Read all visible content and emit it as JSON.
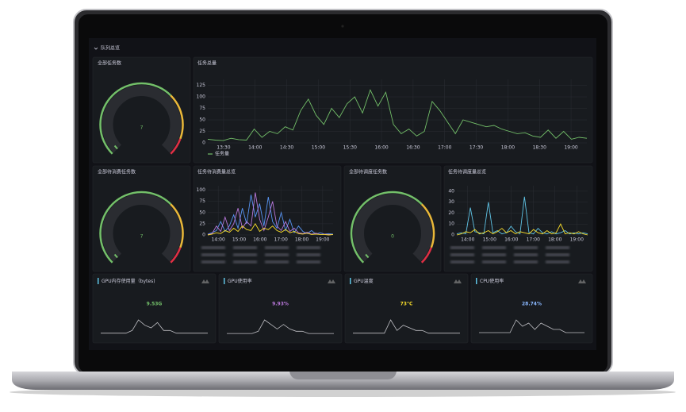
{
  "section_title": "队列总览",
  "gauges": [
    {
      "title": "全部任务数",
      "value": 7
    },
    {
      "title": "全部待消费任务数",
      "value": 7
    },
    {
      "title": "全部待调度任务数",
      "value": 0
    }
  ],
  "charts": [
    {
      "title": "任务总量",
      "ylim": [
        0,
        138
      ],
      "yticks": [
        0,
        25,
        50,
        75,
        100,
        125
      ],
      "xticks": [
        "13:30",
        "14:00",
        "14:30",
        "15:00",
        "15:30",
        "16:00",
        "16:30",
        "17:00",
        "17:30",
        "18:00",
        "18:30",
        "19:00"
      ],
      "legend": "任务量",
      "series": [
        {
          "color": "#73bf69",
          "values": [
            8,
            6,
            5,
            10,
            7,
            6,
            30,
            12,
            25,
            20,
            35,
            28,
            70,
            95,
            60,
            40,
            75,
            55,
            85,
            100,
            65,
            115,
            80,
            110,
            40,
            20,
            30,
            15,
            25,
            90,
            70,
            45,
            20,
            50,
            45,
            40,
            35,
            38,
            30,
            25,
            20,
            22,
            15,
            12,
            28,
            10,
            25,
            8,
            12,
            10
          ]
        }
      ]
    },
    {
      "title": "任务待消费量总览",
      "ylim": [
        0,
        110
      ],
      "yticks": [
        0,
        25,
        50,
        75,
        100
      ],
      "xticks": [
        "14:00",
        "15:00",
        "16:00",
        "17:00",
        "18:00",
        "19:00"
      ],
      "series": [
        {
          "color": "#5794f2",
          "values": [
            2,
            5,
            10,
            30,
            8,
            20,
            45,
            15,
            60,
            25,
            90,
            40,
            70,
            20,
            85,
            30,
            15,
            50,
            10,
            35,
            5,
            20,
            8,
            3,
            10,
            2,
            5,
            2,
            3,
            2
          ]
        },
        {
          "color": "#b877d9",
          "values": [
            1,
            3,
            20,
            8,
            40,
            10,
            25,
            60,
            15,
            30,
            20,
            95,
            35,
            10,
            40,
            75,
            20,
            10,
            30,
            8,
            15,
            5,
            3,
            6,
            2,
            4,
            1,
            2,
            1,
            1
          ]
        },
        {
          "color": "#fade2a",
          "values": [
            0,
            2,
            5,
            3,
            10,
            6,
            15,
            8,
            20,
            12,
            10,
            25,
            8,
            15,
            12,
            20,
            10,
            6,
            12,
            5,
            8,
            3,
            2,
            4,
            1,
            2,
            1,
            1,
            0,
            1
          ]
        }
      ]
    },
    {
      "title": "任务待调度量总览",
      "ylim": [
        0,
        45
      ],
      "yticks": [
        0,
        10,
        20,
        30,
        40
      ],
      "xticks": [
        "14:00",
        "15:00",
        "16:00",
        "17:00",
        "18:00",
        "19:00"
      ],
      "series": [
        {
          "color": "#5fc4e6",
          "values": [
            1,
            2,
            1,
            25,
            3,
            2,
            1,
            30,
            2,
            4,
            1,
            2,
            8,
            3,
            1,
            35,
            2,
            1,
            6,
            2,
            1,
            3,
            1,
            2,
            4,
            1,
            2,
            1,
            2,
            1
          ]
        },
        {
          "color": "#fade2a",
          "values": [
            0,
            1,
            3,
            2,
            5,
            1,
            2,
            4,
            1,
            3,
            6,
            2,
            4,
            1,
            3,
            2,
            1,
            5,
            2,
            1,
            4,
            1,
            2,
            10,
            1,
            2,
            1,
            3,
            1,
            0
          ]
        }
      ]
    }
  ],
  "stats": [
    {
      "title": "GPU内存使用量（bytes)",
      "value": "9.53G",
      "color": "#73bf69",
      "spark": [
        1,
        1,
        1,
        1,
        1,
        2,
        6,
        4,
        3,
        5,
        2,
        2,
        1,
        1,
        1,
        1,
        1,
        1
      ]
    },
    {
      "title": "GPU使用率",
      "value": "9.93%",
      "color": "#b877d9",
      "spark": [
        1,
        1,
        1,
        1,
        1,
        2,
        7,
        5,
        3,
        5,
        3,
        2,
        2,
        1,
        1,
        1,
        1,
        1
      ]
    },
    {
      "title": "GPU温度",
      "value": "73°C",
      "color": "#fade2a",
      "spark": [
        1,
        1,
        1,
        1,
        1,
        1,
        6,
        2,
        4,
        3,
        2,
        2,
        1,
        1,
        1,
        1,
        1,
        1
      ]
    },
    {
      "title": "CPU使用率",
      "value": "28.74%",
      "color": "#8ab8ff",
      "spark": [
        1,
        1,
        1,
        1,
        1,
        1,
        5,
        3,
        4,
        2,
        4,
        3,
        2,
        2,
        1,
        1,
        1,
        1
      ]
    }
  ]
}
